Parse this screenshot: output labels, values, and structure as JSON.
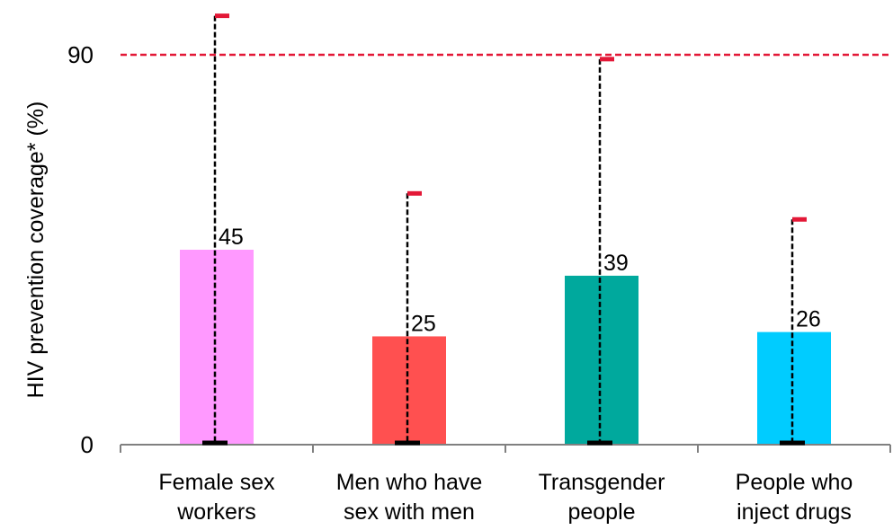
{
  "chart_data": {
    "type": "bar",
    "categories": [
      [
        "Female sex",
        "workers"
      ],
      [
        "Men who have",
        "sex with men"
      ],
      [
        "Transgender",
        "people"
      ],
      [
        "People who",
        "inject drugs"
      ]
    ],
    "values": [
      45,
      25,
      39,
      26
    ],
    "error_low": [
      0,
      0,
      0,
      0
    ],
    "error_high": [
      99,
      58,
      89,
      52
    ],
    "bar_colors": [
      "#ff99ff",
      "#ff5050",
      "#00a99d",
      "#00ccff"
    ],
    "ylabel": "HIV prevention coverage* (%)",
    "yticks": [
      0,
      90
    ],
    "ylim": [
      0,
      100
    ],
    "reference_line": {
      "value": 90,
      "color": "#e31837",
      "style": "dashed"
    },
    "error_bar_color": "#000000",
    "error_cap_high_color": "#e31837",
    "error_cap_low_color": "#000000"
  }
}
